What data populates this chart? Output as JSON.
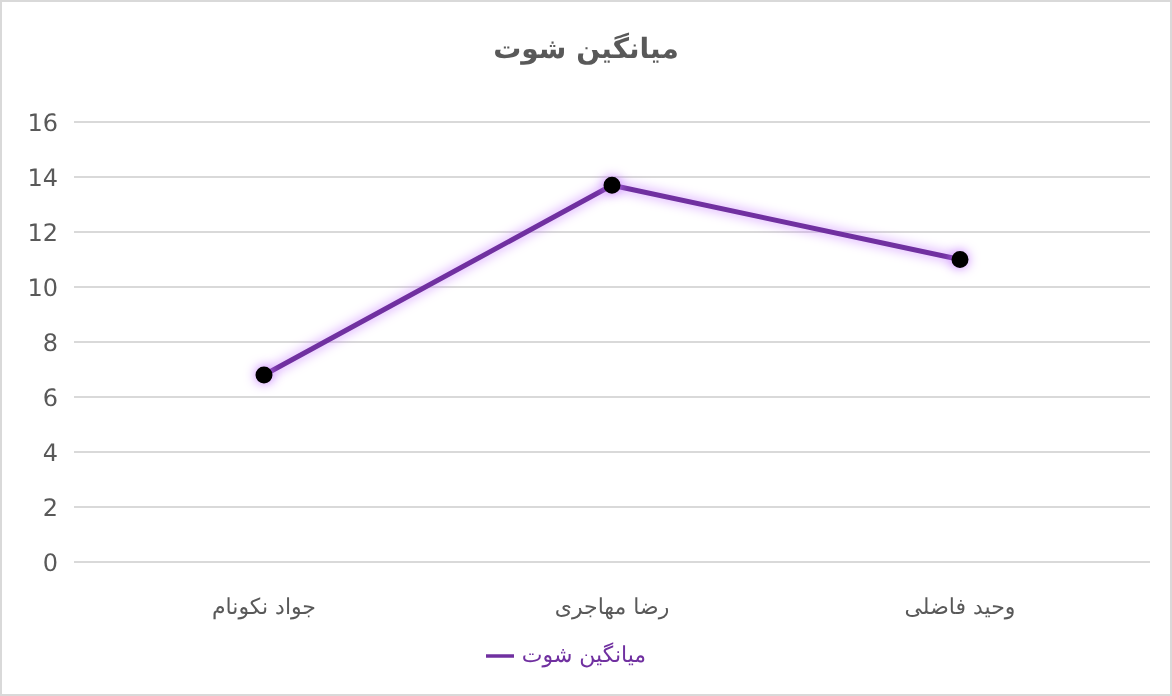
{
  "chart_data": {
    "type": "line",
    "title": "میانگین شوت",
    "categories": [
      "جواد نکونام",
      "رضا مهاجری",
      "وحید فاضلی"
    ],
    "series": [
      {
        "name": "میانگین شوت",
        "color": "#7030a0",
        "values": [
          6.8,
          13.7,
          11
        ]
      }
    ],
    "ylim": [
      0,
      16
    ],
    "yticks": [
      0,
      2,
      4,
      6,
      8,
      10,
      12,
      14,
      16
    ],
    "grid": "y",
    "legend": "bottom",
    "marker": "circle",
    "line_style": "solid"
  }
}
